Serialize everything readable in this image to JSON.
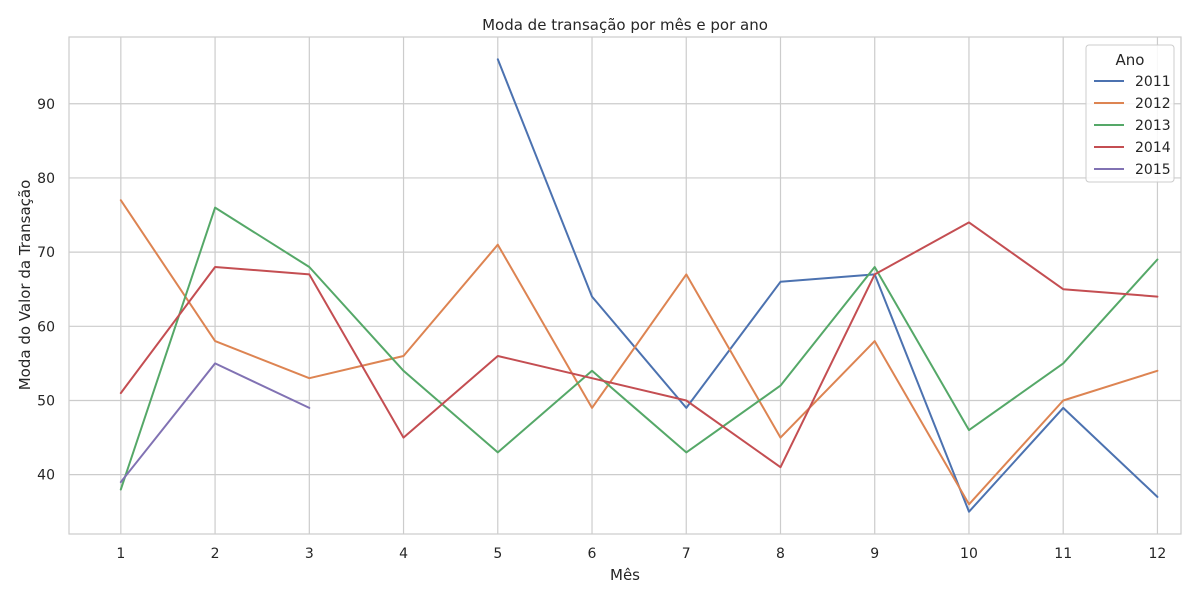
{
  "chart_data": {
    "type": "line",
    "title": "Moda de transação por mês e por ano",
    "xlabel": "Mês",
    "ylabel": "Moda do Valor da Transação",
    "x": [
      1,
      2,
      3,
      4,
      5,
      6,
      7,
      8,
      9,
      10,
      11,
      12
    ],
    "xlim": [
      0.45,
      12.25
    ],
    "ylim": [
      32,
      99
    ],
    "yticks": [
      40,
      50,
      60,
      70,
      80,
      90
    ],
    "grid": true,
    "legend_title": "Ano",
    "legend_position": "top-right",
    "series": [
      {
        "name": "2011",
        "color": "#4c72b0",
        "values": [
          null,
          null,
          null,
          null,
          96,
          64,
          49,
          66,
          67,
          35,
          49,
          37
        ]
      },
      {
        "name": "2012",
        "color": "#dd8452",
        "values": [
          77,
          58,
          53,
          56,
          71,
          49,
          67,
          45,
          58,
          36,
          50,
          54
        ]
      },
      {
        "name": "2013",
        "color": "#55a868",
        "values": [
          38,
          76,
          68,
          54,
          43,
          54,
          43,
          52,
          68,
          46,
          55,
          69
        ]
      },
      {
        "name": "2014",
        "color": "#c44e52",
        "values": [
          51,
          68,
          67,
          45,
          56,
          53,
          50,
          41,
          67,
          74,
          65,
          64
        ]
      },
      {
        "name": "2015",
        "color": "#8172b3",
        "values": [
          39,
          55,
          49,
          null,
          null,
          null,
          null,
          null,
          null,
          null,
          null,
          null
        ]
      }
    ]
  }
}
